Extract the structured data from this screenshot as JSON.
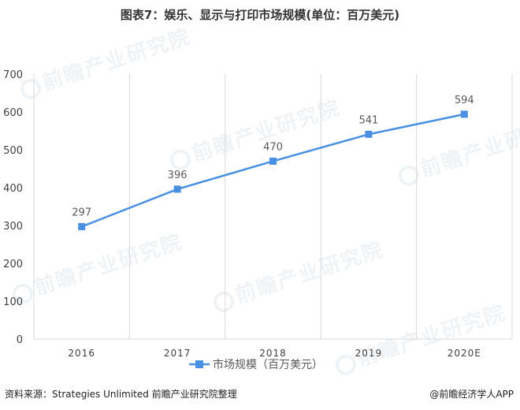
{
  "title": "图表7：娱乐、显示与打印市场规模(单位：百万美元)",
  "source": "资料来源：Strategies Unlimited 前瞻产业研究院整理",
  "brand": "@前瞻经济学人APP",
  "watermark_text": "前瞻产业研究院",
  "colors": {
    "line": "#4a90e2",
    "grid": "#d9d9d9",
    "axis_text": "#404040",
    "label": "#595959"
  },
  "chart_data": {
    "type": "line",
    "title": "图表7：娱乐、显示与打印市场规模(单位：百万美元)",
    "categories": [
      "2016",
      "2017",
      "2018",
      "2019",
      "2020E"
    ],
    "series": [
      {
        "name": "市场规模（百万美元）",
        "values": [
          297,
          396,
          470,
          541,
          594
        ]
      }
    ],
    "ylim": [
      0,
      700
    ],
    "yticks": [
      0,
      100,
      200,
      300,
      400,
      500,
      600,
      700
    ],
    "xlabel": "",
    "ylabel": "",
    "grid": true,
    "data_labels": true,
    "legend": "bottom"
  }
}
